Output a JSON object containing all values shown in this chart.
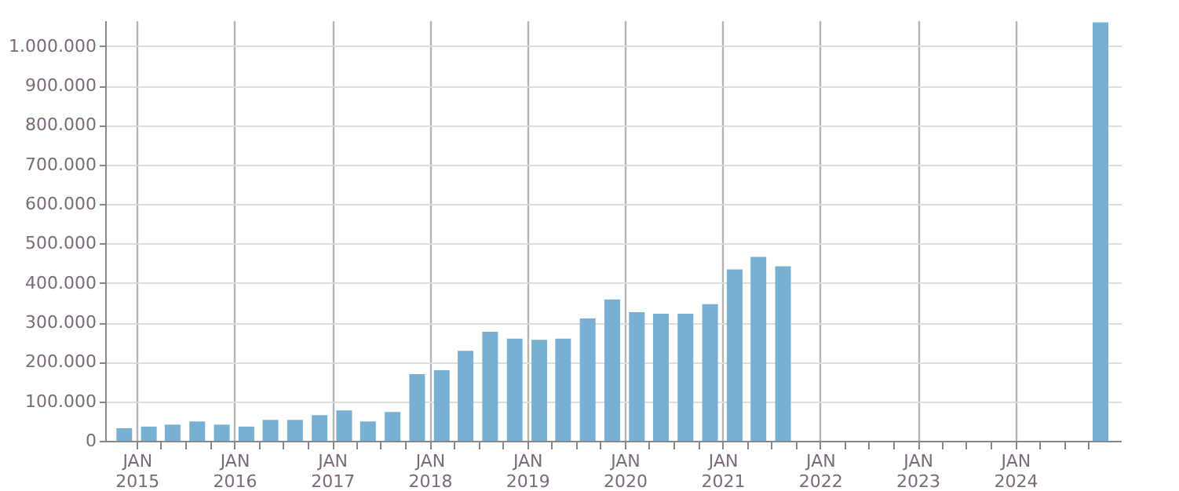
{
  "chart_data": {
    "type": "bar",
    "x": [
      "2014-11-15",
      "2015-02-15",
      "2015-05-15",
      "2015-08-15",
      "2015-11-15",
      "2016-02-15",
      "2016-05-15",
      "2016-08-15",
      "2016-11-15",
      "2017-02-15",
      "2017-05-15",
      "2017-08-15",
      "2017-11-15",
      "2018-02-15",
      "2018-05-15",
      "2018-08-15",
      "2018-11-15",
      "2019-02-15",
      "2019-05-15",
      "2019-08-15",
      "2019-11-15",
      "2020-02-15",
      "2020-05-15",
      "2020-08-15",
      "2020-11-15",
      "2021-02-15",
      "2021-05-15",
      "2021-08-15",
      "2024-11-15"
    ],
    "values": [
      32000,
      36000,
      41000,
      49000,
      41000,
      36000,
      53000,
      53000,
      65000,
      77000,
      49000,
      73000,
      169000,
      179000,
      228000,
      276000,
      259000,
      256000,
      259000,
      310000,
      358000,
      326000,
      322000,
      322000,
      346000,
      434000,
      466000,
      442000,
      1060000
    ],
    "color": "#78b0d3",
    "xlim": [
      "2014-10-04",
      "2025-01-01"
    ],
    "xticks": [
      {
        "value": "2015-01-01",
        "label": "JAN\n2015"
      },
      {
        "value": "2015-04-01",
        "label": null
      },
      {
        "value": "2015-07-01",
        "label": null
      },
      {
        "value": "2015-10-01",
        "label": null
      },
      {
        "value": "2016-01-01",
        "label": "JAN\n2016"
      },
      {
        "value": "2016-04-01",
        "label": null
      },
      {
        "value": "2016-07-01",
        "label": null
      },
      {
        "value": "2016-10-01",
        "label": null
      },
      {
        "value": "2017-01-01",
        "label": "JAN\n2017"
      },
      {
        "value": "2017-04-01",
        "label": null
      },
      {
        "value": "2017-07-01",
        "label": null
      },
      {
        "value": "2017-10-01",
        "label": null
      },
      {
        "value": "2018-01-01",
        "label": "JAN\n2018"
      },
      {
        "value": "2018-04-01",
        "label": null
      },
      {
        "value": "2018-07-01",
        "label": null
      },
      {
        "value": "2018-10-01",
        "label": null
      },
      {
        "value": "2019-01-01",
        "label": "JAN\n2019"
      },
      {
        "value": "2019-04-01",
        "label": null
      },
      {
        "value": "2019-07-01",
        "label": null
      },
      {
        "value": "2019-10-01",
        "label": null
      },
      {
        "value": "2020-01-01",
        "label": "JAN\n2020"
      },
      {
        "value": "2020-04-01",
        "label": null
      },
      {
        "value": "2020-07-01",
        "label": null
      },
      {
        "value": "2020-10-01",
        "label": null
      },
      {
        "value": "2021-01-01",
        "label": "JAN\n2021"
      },
      {
        "value": "2021-04-01",
        "label": null
      },
      {
        "value": "2021-07-01",
        "label": null
      },
      {
        "value": "2021-10-01",
        "label": null
      },
      {
        "value": "2022-01-01",
        "label": "JAN\n2022"
      },
      {
        "value": "2022-04-01",
        "label": null
      },
      {
        "value": "2022-07-01",
        "label": null
      },
      {
        "value": "2022-10-01",
        "label": null
      },
      {
        "value": "2023-01-01",
        "label": "JAN\n2023"
      },
      {
        "value": "2023-04-01",
        "label": null
      },
      {
        "value": "2023-07-01",
        "label": null
      },
      {
        "value": "2023-10-01",
        "label": null
      },
      {
        "value": "2024-01-01",
        "label": "JAN\n2024"
      },
      {
        "value": "2024-04-01",
        "label": null
      },
      {
        "value": "2024-07-01",
        "label": null
      },
      {
        "value": "2024-10-01",
        "label": null
      }
    ],
    "ylim": [
      0,
      1065000
    ],
    "yticks": [
      {
        "value": 0,
        "label": "0"
      },
      {
        "value": 100000,
        "label": "100.000"
      },
      {
        "value": 200000,
        "label": "200.000"
      },
      {
        "value": 300000,
        "label": "300.000"
      },
      {
        "value": 400000,
        "label": "400.000"
      },
      {
        "value": 500000,
        "label": "500.000"
      },
      {
        "value": 600000,
        "label": "600.000"
      },
      {
        "value": 700000,
        "label": "700.000"
      },
      {
        "value": 800000,
        "label": "800.000"
      },
      {
        "value": 900000,
        "label": "900.000"
      },
      {
        "value": 1000000,
        "label": "1.000.000"
      }
    ],
    "grid": true
  }
}
